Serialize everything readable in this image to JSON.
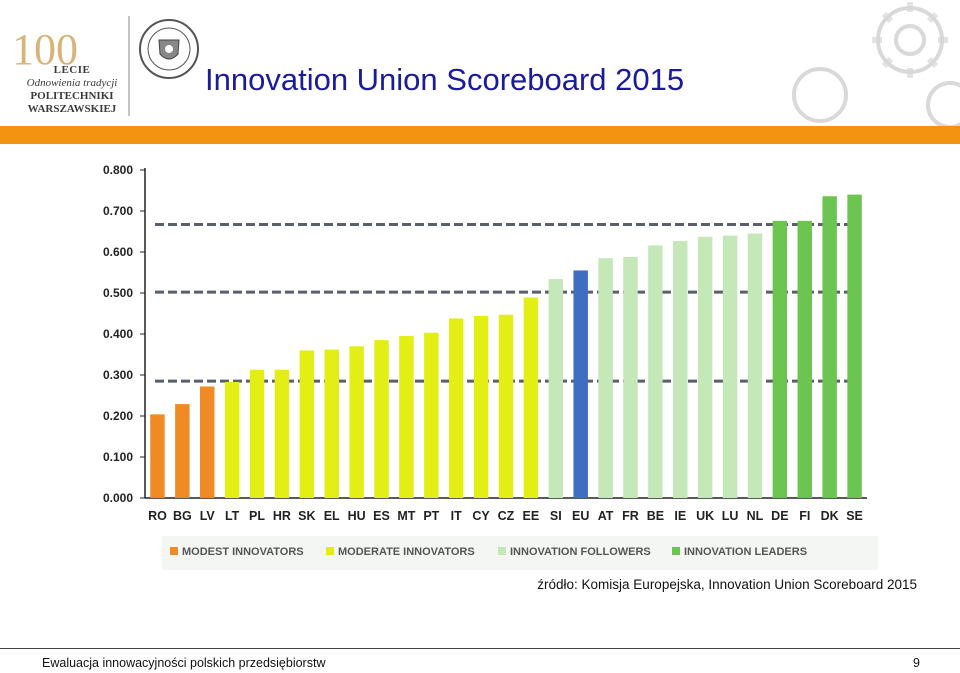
{
  "header": {
    "title": "Innovation Union Scoreboard 2015",
    "logo": {
      "number": "100",
      "line1": "LECIE",
      "line2": "Odnowienia tradycji",
      "line3": "POLITECHNIKI",
      "line4": "WARSZAWSKIEJ"
    },
    "seal": "politechnika-seal-icon"
  },
  "colors": {
    "accent": "#f39312",
    "title": "#1a1a9c",
    "modest": "#f08a24",
    "moderate": "#e3ee14",
    "followers": "#c5e8b8",
    "leaders": "#6cc551",
    "eu": "#3d6ec2"
  },
  "chart_data": {
    "type": "bar",
    "categories": [
      "RO",
      "BG",
      "LV",
      "LT",
      "PL",
      "HR",
      "SK",
      "EL",
      "HU",
      "ES",
      "MT",
      "PT",
      "IT",
      "CY",
      "CZ",
      "EE",
      "SI",
      "EU",
      "AT",
      "FR",
      "BE",
      "IE",
      "UK",
      "LU",
      "NL",
      "DE",
      "FI",
      "DK",
      "SE"
    ],
    "values": [
      0.204,
      0.229,
      0.272,
      0.283,
      0.313,
      0.313,
      0.36,
      0.362,
      0.37,
      0.385,
      0.395,
      0.403,
      0.438,
      0.444,
      0.447,
      0.489,
      0.534,
      0.555,
      0.585,
      0.588,
      0.616,
      0.627,
      0.637,
      0.64,
      0.645,
      0.676,
      0.676,
      0.736,
      0.74
    ],
    "groups": [
      "modest",
      "modest",
      "modest",
      "moderate",
      "moderate",
      "moderate",
      "moderate",
      "moderate",
      "moderate",
      "moderate",
      "moderate",
      "moderate",
      "moderate",
      "moderate",
      "moderate",
      "moderate",
      "followers",
      "eu",
      "followers",
      "followers",
      "followers",
      "followers",
      "followers",
      "followers",
      "followers",
      "leaders",
      "leaders",
      "leaders",
      "leaders"
    ],
    "thresholds": [
      0.285,
      0.502,
      0.667
    ],
    "ylim": [
      0,
      0.8
    ],
    "yticks": [
      "0.000",
      "0.100",
      "0.200",
      "0.300",
      "0.400",
      "0.500",
      "0.600",
      "0.700",
      "0.800"
    ],
    "legend": [
      {
        "key": "modest",
        "label": "MODEST INNOVATORS"
      },
      {
        "key": "moderate",
        "label": "MODERATE INNOVATORS"
      },
      {
        "key": "followers",
        "label": "INNOVATION FOLLOWERS"
      },
      {
        "key": "leaders",
        "label": "INNOVATION LEADERS"
      }
    ],
    "legend_position": "bottom",
    "grid": false
  },
  "source": "źródło: Komisja Europejska, Innovation Union Scoreboard 2015",
  "footer": {
    "text": "Ewaluacja innowacyjności polskich przedsiębiorstw",
    "page": "9"
  }
}
